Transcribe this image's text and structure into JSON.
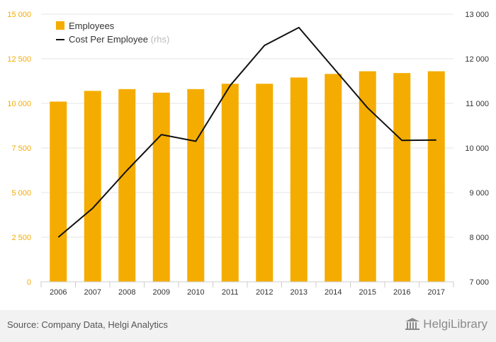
{
  "chart_data": {
    "type": "bar+line",
    "categories": [
      "2006",
      "2007",
      "2008",
      "2009",
      "2010",
      "2011",
      "2012",
      "2013",
      "2014",
      "2015",
      "2016",
      "2017"
    ],
    "series": [
      {
        "name": "Employees",
        "axis": "left",
        "type": "bar",
        "color": "#f5ac00",
        "values": [
          10100,
          10700,
          10800,
          10600,
          10800,
          11100,
          11100,
          11450,
          11650,
          11800,
          11700,
          11800
        ]
      },
      {
        "name": "Cost Per Employee",
        "legend_suffix": "(rhs)",
        "axis": "right",
        "type": "line",
        "color": "#111111",
        "values": [
          8000,
          8650,
          9500,
          10300,
          10150,
          11400,
          12300,
          12700,
          11800,
          10900,
          10170,
          10180
        ]
      }
    ],
    "y_left": {
      "min": 0,
      "max": 15000,
      "ticks": [
        0,
        2500,
        5000,
        7500,
        10000,
        12500,
        15000
      ],
      "tick_labels": [
        "0",
        "2 500",
        "5 000",
        "7 500",
        "10 000",
        "12 500",
        "15 000"
      ]
    },
    "y_right": {
      "min": 7000,
      "max": 13000,
      "ticks": [
        7000,
        8000,
        9000,
        10000,
        11000,
        12000,
        13000
      ],
      "tick_labels": [
        "7 000",
        "8 000",
        "9 000",
        "10 000",
        "11 000",
        "12 000",
        "13 000"
      ]
    },
    "grid": true,
    "legend_position": "top-left",
    "left_tick_color": "#f5ac00"
  },
  "footer": {
    "source": "Source: Company Data, Helgi Analytics",
    "logo": "HelgiLibrary"
  }
}
